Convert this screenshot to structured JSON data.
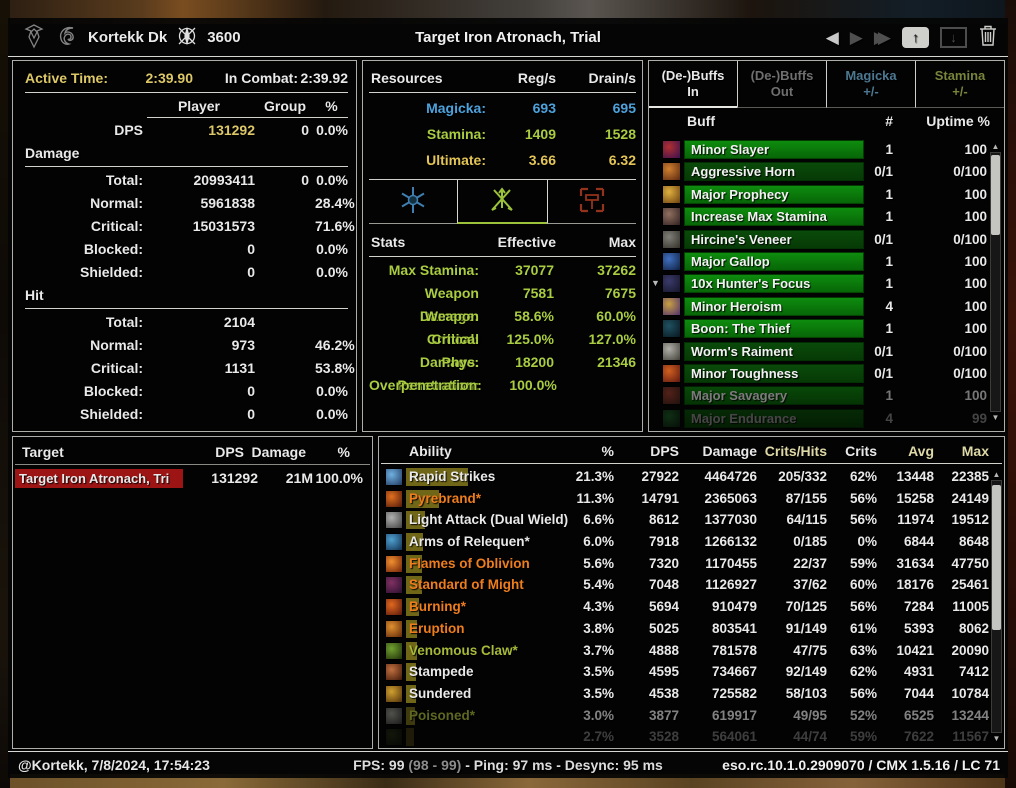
{
  "colors": {
    "gold": "#ddc868",
    "magicka": "#4da2dd",
    "stamina": "#a9cc41",
    "ultimate": "#e3c556",
    "fire": "#ee7d1d",
    "poison": "#a7b939",
    "buff_green_on": "#0e8c0e",
    "buff_green_off": "#0a4a0a",
    "dps_bar_olive": "#7a6f1a",
    "target_red": "#9c1414"
  },
  "icons": {
    "prev": "◀",
    "next": "▶",
    "last": "▶▶",
    "save_arrow": "↑",
    "load_arrow": "↓",
    "scroll_up": "▲",
    "scroll_down": "▼",
    "expander": "▼"
  },
  "title_bar": {
    "player_name": "Kortekk Dk",
    "champion_points": "3600",
    "fight_title": "Target Iron Atronach, Trial"
  },
  "combat": {
    "active_time_label": "Active Time:",
    "active_time": "2:39.90",
    "in_combat_label": "In Combat:",
    "in_combat": "2:39.92",
    "col_player": "Player",
    "col_group": "Group",
    "col_pct": "%",
    "dps_label": "DPS",
    "dps_player": "131292",
    "dps_group": "0",
    "dps_pct": "0.0%",
    "damage_section": "Damage",
    "damage_rows": [
      {
        "label": "Total:",
        "value": "20993411",
        "group": "0",
        "pct": "0.0%"
      },
      {
        "label": "Normal:",
        "value": "5961838",
        "group": "",
        "pct": "28.4%"
      },
      {
        "label": "Critical:",
        "value": "15031573",
        "group": "",
        "pct": "71.6%"
      },
      {
        "label": "Blocked:",
        "value": "0",
        "group": "",
        "pct": "0.0%"
      },
      {
        "label": "Shielded:",
        "value": "0",
        "group": "",
        "pct": "0.0%"
      }
    ],
    "hit_section": "Hit",
    "hit_rows": [
      {
        "label": "Total:",
        "value": "2104",
        "group": "",
        "pct": ""
      },
      {
        "label": "Normal:",
        "value": "973",
        "group": "",
        "pct": "46.2%"
      },
      {
        "label": "Critical:",
        "value": "1131",
        "group": "",
        "pct": "53.8%"
      },
      {
        "label": "Blocked:",
        "value": "0",
        "group": "",
        "pct": "0.0%"
      },
      {
        "label": "Shielded:",
        "value": "0",
        "group": "",
        "pct": "0.0%"
      }
    ]
  },
  "resources": {
    "header": "Resources",
    "col_reg": "Reg/s",
    "col_drain": "Drain/s",
    "rows": [
      {
        "label": "Magicka:",
        "reg": "693",
        "drain": "695",
        "color": "#4da2dd"
      },
      {
        "label": "Stamina:",
        "reg": "1409",
        "drain": "1528",
        "color": "#a9cc41"
      },
      {
        "label": "Ultimate:",
        "reg": "3.66",
        "drain": "6.32",
        "color": "#e3c556"
      }
    ],
    "tabs": [
      {
        "name": "magicka",
        "selected": false
      },
      {
        "name": "stamina",
        "selected": true
      },
      {
        "name": "weapon",
        "selected": false
      }
    ]
  },
  "stats": {
    "header": "Stats",
    "col_effective": "Effective",
    "col_max": "Max",
    "rows": [
      {
        "label": "Max Stamina:",
        "effective": "37077",
        "max": "37262"
      },
      {
        "label": "Weapon Damage:",
        "effective": "7581",
        "max": "7675"
      },
      {
        "label": "Weapon Critical:",
        "effective": "58.6%",
        "max": "60.0%"
      },
      {
        "label": "Critical Damage:",
        "effective": "125.0%",
        "max": "127.0%"
      },
      {
        "label": "Phys. Penetration:",
        "effective": "18200",
        "max": "21346"
      },
      {
        "label": "Overpenetration:",
        "effective": "100.0%",
        "max": ""
      }
    ]
  },
  "buffs": {
    "tabs": [
      {
        "line1": "(De-)Buffs",
        "line2": "In",
        "color": "#e8e8e8",
        "selected": true
      },
      {
        "line1": "(De-)Buffs",
        "line2": "Out",
        "color": "#6f6f6f",
        "selected": false
      },
      {
        "line1": "Magicka",
        "line2": "+/-",
        "color": "#4d7891",
        "selected": false
      },
      {
        "line1": "Stamina",
        "line2": "+/-",
        "color": "#79833b",
        "selected": false
      }
    ],
    "col_buff": "Buff",
    "col_count": "#",
    "col_uptime": "Uptime %",
    "rows": [
      {
        "name": "Minor Slayer",
        "count": "1",
        "uptime": "100",
        "active": true,
        "expander": false,
        "fade": 1,
        "icon": [
          "#b03030",
          "#3a1050"
        ]
      },
      {
        "name": "Aggressive Horn",
        "count": "0/1",
        "uptime": "0/100",
        "active": false,
        "expander": false,
        "fade": 1,
        "icon": [
          "#d08030",
          "#5a2810"
        ]
      },
      {
        "name": "Major Prophecy",
        "count": "1",
        "uptime": "100",
        "active": true,
        "expander": false,
        "fade": 1,
        "icon": [
          "#e0b040",
          "#6a4010"
        ]
      },
      {
        "name": "Increase Max Stamina",
        "count": "1",
        "uptime": "100",
        "active": true,
        "expander": false,
        "fade": 1,
        "icon": [
          "#907060",
          "#302020"
        ]
      },
      {
        "name": "Hircine's Veneer",
        "count": "0/1",
        "uptime": "0/100",
        "active": false,
        "expander": false,
        "fade": 1,
        "icon": [
          "#808078",
          "#303028"
        ]
      },
      {
        "name": "Major Gallop",
        "count": "1",
        "uptime": "100",
        "active": true,
        "expander": false,
        "fade": 1,
        "icon": [
          "#4070c0",
          "#102040"
        ]
      },
      {
        "name": "10x Hunter's Focus",
        "count": "1",
        "uptime": "100",
        "active": true,
        "expander": true,
        "fade": 1,
        "icon": [
          "#3a3a6a",
          "#15152a"
        ]
      },
      {
        "name": "Minor Heroism",
        "count": "4",
        "uptime": "100",
        "active": true,
        "expander": false,
        "fade": 1,
        "icon": [
          "#c8a040",
          "#503070"
        ]
      },
      {
        "name": "Boon: The Thief",
        "count": "1",
        "uptime": "100",
        "active": true,
        "expander": false,
        "fade": 1,
        "icon": [
          "#205060",
          "#081820"
        ]
      },
      {
        "name": "Worm's Raiment",
        "count": "0/1",
        "uptime": "0/100",
        "active": false,
        "expander": false,
        "fade": 1,
        "icon": [
          "#b0b0a8",
          "#404038"
        ]
      },
      {
        "name": "Minor Toughness",
        "count": "0/1",
        "uptime": "0/100",
        "active": false,
        "expander": false,
        "fade": 1,
        "icon": [
          "#d06020",
          "#601810"
        ]
      },
      {
        "name": "Major Savagery",
        "count": "1",
        "uptime": "100",
        "active": true,
        "expander": false,
        "fade": 0.5,
        "icon": [
          "#a04030",
          "#402018"
        ]
      },
      {
        "name": "Major Endurance",
        "count": "4",
        "uptime": "99",
        "active": true,
        "expander": false,
        "fade": 0.28,
        "icon": [
          "#30a040",
          "#103018"
        ]
      }
    ]
  },
  "targets": {
    "col_target": "Target",
    "col_dps": "DPS",
    "col_damage": "Damage",
    "col_pct": "%",
    "rows": [
      {
        "name": "Target Iron Atronach, Tri",
        "dps": "131292",
        "damage": "21M",
        "pct": "100.0%"
      }
    ]
  },
  "abilities": {
    "col_ability": "Ability",
    "col_pct": "%",
    "col_dps": "DPS",
    "col_damage": "Damage",
    "col_crits_hits": "Crits/Hits",
    "col_crits": "Crits",
    "col_avg": "Avg",
    "col_max": "Max",
    "rows": [
      {
        "name": "Rapid Strikes",
        "type": "physical",
        "pct": "21.3%",
        "dps": "27922",
        "damage": "4464726",
        "ch": "205/332",
        "crits": "62%",
        "avg": "13448",
        "max": "22385",
        "fade": 1,
        "icon": [
          "#70b0e0",
          "#203a60"
        ]
      },
      {
        "name": "Pyrebrand*",
        "type": "fire",
        "pct": "11.3%",
        "dps": "14791",
        "damage": "2365063",
        "ch": "87/155",
        "crits": "56%",
        "avg": "15258",
        "max": "24149",
        "fade": 1,
        "icon": [
          "#e07020",
          "#501808"
        ]
      },
      {
        "name": "Light Attack (Dual Wield)",
        "type": "physical",
        "pct": "6.6%",
        "dps": "8612",
        "damage": "1377030",
        "ch": "64/115",
        "crits": "56%",
        "avg": "11974",
        "max": "19512",
        "fade": 1,
        "icon": [
          "#b0b0b0",
          "#404040"
        ]
      },
      {
        "name": "Arms of Relequen*",
        "type": "physical",
        "pct": "6.0%",
        "dps": "7918",
        "damage": "1266132",
        "ch": "0/185",
        "crits": "0%",
        "avg": "6844",
        "max": "8648",
        "fade": 1,
        "icon": [
          "#50a0d0",
          "#103050"
        ]
      },
      {
        "name": "Flames of Oblivion",
        "type": "fire",
        "pct": "5.6%",
        "dps": "7320",
        "damage": "1170455",
        "ch": "22/37",
        "crits": "59%",
        "avg": "31634",
        "max": "47750",
        "fade": 1,
        "icon": [
          "#f09030",
          "#702008"
        ]
      },
      {
        "name": "Standard of Might",
        "type": "fire",
        "pct": "5.4%",
        "dps": "7048",
        "damage": "1126927",
        "ch": "37/62",
        "crits": "60%",
        "avg": "18176",
        "max": "25461",
        "fade": 1,
        "icon": [
          "#803060",
          "#2a1030"
        ]
      },
      {
        "name": "Burning*",
        "type": "fire",
        "pct": "4.3%",
        "dps": "5694",
        "damage": "910479",
        "ch": "70/125",
        "crits": "56%",
        "avg": "7284",
        "max": "11005",
        "fade": 1,
        "icon": [
          "#e06820",
          "#58180a"
        ]
      },
      {
        "name": "Eruption",
        "type": "fire",
        "pct": "3.8%",
        "dps": "5025",
        "damage": "803541",
        "ch": "91/149",
        "crits": "61%",
        "avg": "5393",
        "max": "8062",
        "fade": 1,
        "icon": [
          "#e09030",
          "#602808"
        ]
      },
      {
        "name": "Venomous Claw*",
        "type": "poison",
        "pct": "3.7%",
        "dps": "4888",
        "damage": "781578",
        "ch": "47/75",
        "crits": "63%",
        "avg": "10421",
        "max": "20090",
        "fade": 1,
        "icon": [
          "#70a030",
          "#203008"
        ]
      },
      {
        "name": "Stampede",
        "type": "physical",
        "pct": "3.5%",
        "dps": "4595",
        "damage": "734667",
        "ch": "92/149",
        "crits": "62%",
        "avg": "4931",
        "max": "7412",
        "fade": 1,
        "icon": [
          "#c07040",
          "#401808"
        ]
      },
      {
        "name": "Sundered",
        "type": "physical",
        "pct": "3.5%",
        "dps": "4538",
        "damage": "725582",
        "ch": "58/103",
        "crits": "56%",
        "avg": "7044",
        "max": "10784",
        "fade": 1,
        "icon": [
          "#d0a030",
          "#50300a"
        ]
      },
      {
        "name": "Poisoned*",
        "type": "poison",
        "pct": "3.0%",
        "dps": "3877",
        "damage": "619917",
        "ch": "49/95",
        "crits": "52%",
        "avg": "6525",
        "max": "13244",
        "fade": 0.55,
        "icon": [
          "#909088",
          "#303030"
        ]
      },
      {
        "name": "",
        "type": "poison",
        "pct": "2.7%",
        "dps": "3528",
        "damage": "564061",
        "ch": "44/74",
        "crits": "59%",
        "avg": "7622",
        "max": "11567",
        "fade": 0.25,
        "icon": [
          "#405020",
          "#101808"
        ]
      }
    ]
  },
  "status_bar": {
    "left": "@Kortekk, 7/8/2024, 17:54:23",
    "fps": "FPS: 99",
    "fps_range": "(98 - 99)",
    "ping": "- Ping: 97 ms - Desync: 95 ms",
    "right": "eso.rc.10.1.0.2909070 / CMX 1.5.16 / LC 71"
  }
}
